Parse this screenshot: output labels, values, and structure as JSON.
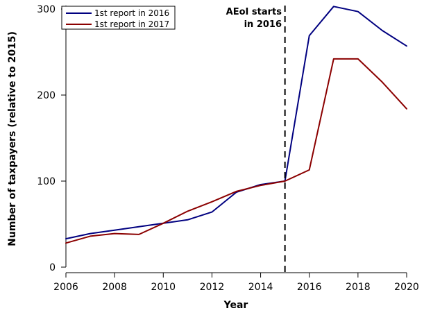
{
  "chart_data": {
    "type": "line",
    "xlabel": "Year",
    "ylabel": "Number of taxpayers (relative to 2015)",
    "x_ticks": [
      2006,
      2008,
      2010,
      2012,
      2014,
      2016,
      2018,
      2020
    ],
    "y_ticks": [
      0,
      100,
      200,
      300
    ],
    "xlim": [
      2006,
      2020
    ],
    "ylim": [
      0,
      300
    ],
    "grid": false,
    "legend_position": "top-left",
    "annotation": {
      "x": 2015,
      "line1": "AEoI starts",
      "line2": "in 2016"
    },
    "x": [
      2006,
      2007,
      2008,
      2009,
      2010,
      2011,
      2012,
      2013,
      2014,
      2015,
      2016,
      2017,
      2018,
      2019,
      2020
    ],
    "series": [
      {
        "name": "1st report in 2016",
        "color": "#000080",
        "values": [
          33,
          39,
          43,
          47,
          51,
          55,
          64,
          87,
          96,
          100,
          269,
          303,
          297,
          275,
          257
        ]
      },
      {
        "name": "1st report in 2017",
        "color": "#8b0000",
        "values": [
          28,
          36,
          39,
          38,
          51,
          65,
          76,
          88,
          95,
          100,
          113,
          242,
          242,
          215,
          184
        ]
      }
    ]
  }
}
